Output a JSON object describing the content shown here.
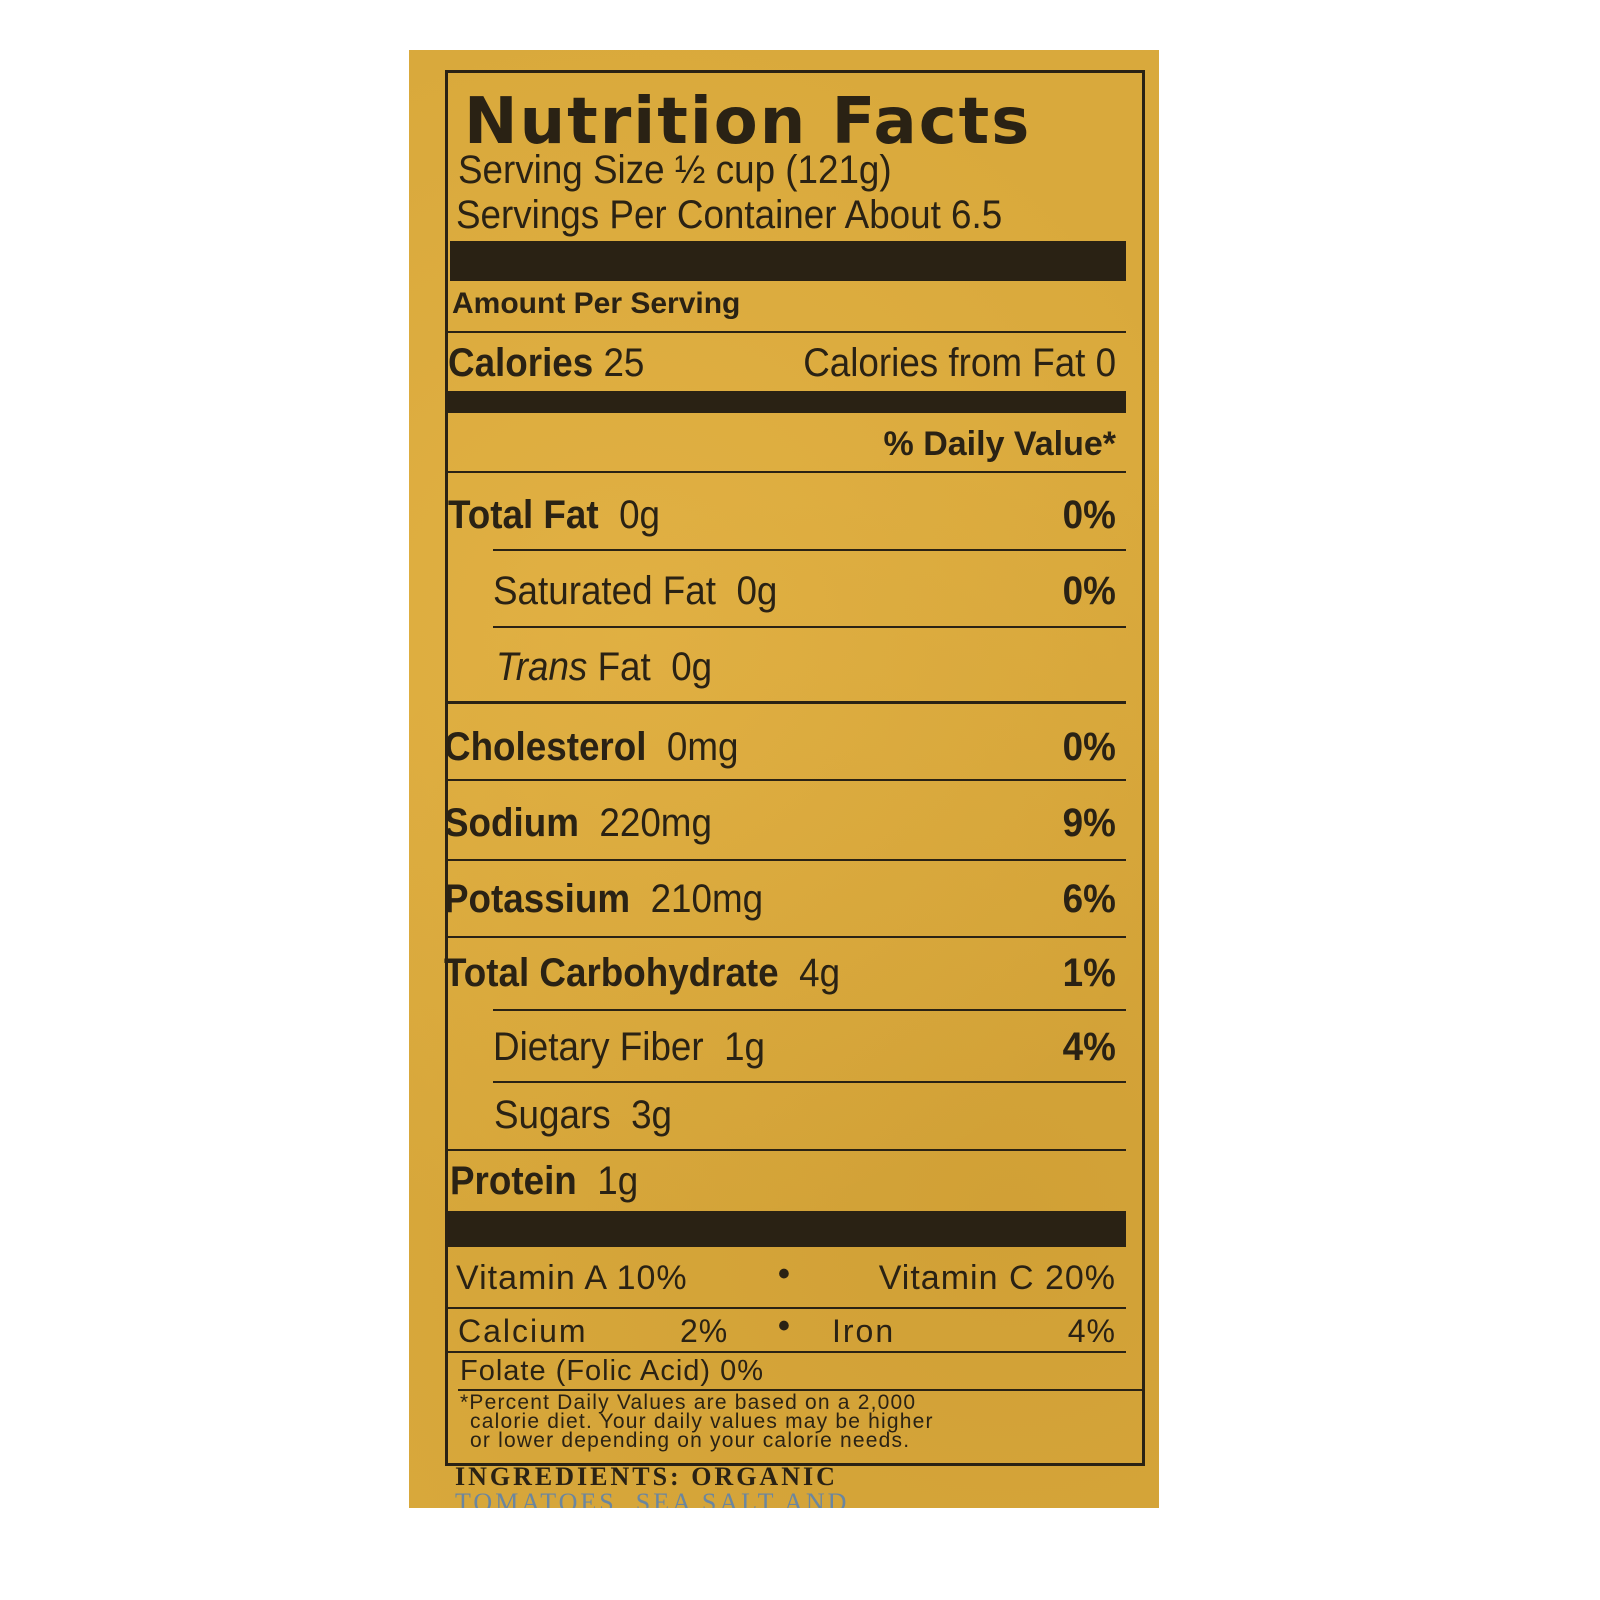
{
  "label": {
    "title": "Nutrition Facts",
    "serving_size": "Serving Size ½ cup (121g)",
    "servings_per_container": "Servings Per Container About 6.5",
    "amount_per_serving": "Amount Per Serving",
    "calories_label": "Calories",
    "calories_value": "25",
    "calories_from_fat": "Calories from Fat 0",
    "daily_value_header": "% Daily Value*",
    "nutrients": [
      {
        "name": "Total Fat",
        "amount": "0g",
        "dv": "0%"
      },
      {
        "name": "Saturated Fat",
        "amount": "0g",
        "dv": "0%"
      },
      {
        "name": "Trans",
        "suffix": "Fat",
        "amount": "0g",
        "dv": ""
      },
      {
        "name": "Cholesterol",
        "amount": "0mg",
        "dv": "0%"
      },
      {
        "name": "Sodium",
        "amount": "220mg",
        "dv": "9%"
      },
      {
        "name": "Potassium",
        "amount": "210mg",
        "dv": "6%"
      },
      {
        "name": "Total Carbohydrate",
        "amount": "4g",
        "dv": "1%"
      },
      {
        "name": "Dietary Fiber",
        "amount": "1g",
        "dv": "4%"
      },
      {
        "name": "Sugars",
        "amount": "3g",
        "dv": ""
      },
      {
        "name": "Protein",
        "amount": "1g",
        "dv": ""
      }
    ],
    "vitamin_a": "Vitamin A 10%",
    "vitamin_c": "Vitamin C 20%",
    "calcium": "Calcium",
    "calcium_dv": "2%",
    "iron": "Iron",
    "iron_dv": "4%",
    "bullet": "•",
    "folate": "Folate (Folic Acid)  0%",
    "footnote": [
      "*Percent Daily Values are based on a 2,000",
      "calorie diet. Your daily values may be higher",
      "or lower depending on your calorie needs."
    ],
    "ingredients": "INGREDIENTS: ORGANIC",
    "ingredients_cont": "TOMATOES, SEA SALT AND"
  },
  "colors": {
    "background": "#d9a93c",
    "ink": "#2a2214"
  }
}
